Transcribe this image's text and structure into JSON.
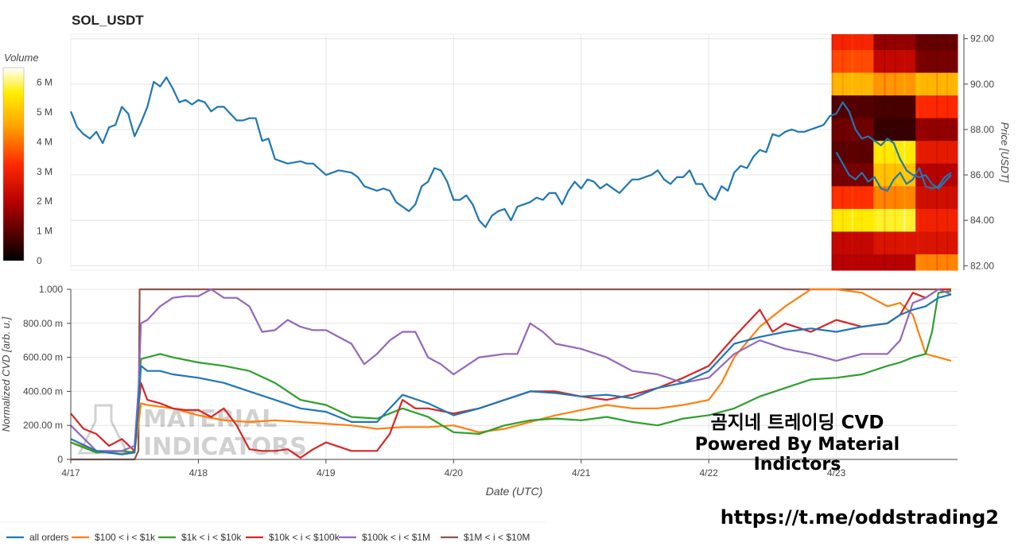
{
  "title": "SOL_USDT",
  "overlay": {
    "cvd_title": "곰지네 트레이딩 CVD",
    "powered_by": "Powered By Material Indictors",
    "telegram": "https://t.me/oddstrading2",
    "logo_text_1": "MATERIAL",
    "logo_text_2": "INDICATORS"
  },
  "chart_data": [
    {
      "type": "line",
      "name": "price",
      "x_label": "",
      "ylabel": "Price [USDT]",
      "ylim": [
        81.8,
        92.2
      ],
      "yticks": [
        82,
        84,
        86,
        88,
        90,
        92
      ],
      "ytick_labels": [
        "82.00",
        "84.00",
        "86.00",
        "88.00",
        "90.00",
        "92.00"
      ],
      "x_range_days": [
        0,
        6.95
      ],
      "series": [
        {
          "name": "SOL_USDT price",
          "color": "#1f77b4",
          "x": [
            0,
            0.05,
            0.1,
            0.15,
            0.2,
            0.25,
            0.3,
            0.35,
            0.4,
            0.45,
            0.5,
            0.55,
            0.6,
            0.65,
            0.7,
            0.75,
            0.8,
            0.85,
            0.9,
            0.95,
            1.0,
            1.05,
            1.1,
            1.15,
            1.2,
            1.3,
            1.35,
            1.4,
            1.45,
            1.5,
            1.55,
            1.6,
            1.7,
            1.8,
            1.85,
            1.9,
            2.0,
            2.05,
            2.1,
            2.2,
            2.25,
            2.3,
            2.35,
            2.4,
            2.45,
            2.5,
            2.55,
            2.6,
            2.65,
            2.7,
            2.75,
            2.8,
            2.85,
            2.9,
            2.95,
            3.0,
            3.05,
            3.1,
            3.15,
            3.2,
            3.25,
            3.3,
            3.35,
            3.4,
            3.45,
            3.5,
            3.55,
            3.6,
            3.65,
            3.7,
            3.75,
            3.8,
            3.85,
            3.9,
            3.95,
            4.0,
            4.05,
            4.1,
            4.15,
            4.2,
            4.25,
            4.3,
            4.35,
            4.4,
            4.45,
            4.5,
            4.55,
            4.6,
            4.65,
            4.7,
            4.75,
            4.8,
            4.85,
            4.9,
            4.95,
            5.0,
            5.05,
            5.1,
            5.15,
            5.2,
            5.25,
            5.3,
            5.35,
            5.4,
            5.45,
            5.5,
            5.55,
            5.6,
            5.65,
            5.7,
            5.75,
            5.8,
            5.85,
            5.9,
            5.95,
            6.0,
            6.05,
            6.1,
            6.15,
            6.2,
            6.25,
            6.3,
            6.35,
            6.4,
            6.45,
            6.5,
            6.55,
            6.6,
            6.65,
            6.7,
            6.75,
            6.8,
            6.85,
            6.9
          ],
          "values": [
            88.8,
            88.1,
            87.8,
            87.6,
            87.9,
            87.4,
            88.1,
            88.2,
            89.0,
            88.7,
            87.7,
            88.3,
            89.0,
            90.1,
            89.9,
            90.3,
            89.8,
            89.2,
            89.3,
            89.1,
            89.3,
            89.2,
            88.8,
            89.0,
            89.0,
            88.4,
            88.4,
            88.5,
            88.5,
            87.5,
            87.6,
            86.7,
            86.5,
            86.6,
            86.5,
            86.5,
            86.0,
            86.1,
            86.2,
            86.1,
            85.9,
            85.5,
            85.4,
            85.3,
            85.4,
            85.3,
            84.8,
            84.6,
            84.4,
            84.7,
            85.5,
            85.7,
            86.3,
            86.2,
            85.7,
            84.9,
            84.9,
            85.1,
            84.7,
            84.0,
            83.7,
            84.2,
            84.4,
            84.5,
            84.0,
            84.6,
            84.7,
            84.8,
            85.0,
            84.9,
            85.2,
            85.2,
            84.7,
            85.3,
            85.7,
            85.4,
            85.8,
            85.7,
            85.4,
            85.6,
            85.4,
            85.2,
            85.5,
            85.8,
            85.8,
            85.9,
            86.0,
            86.2,
            85.8,
            85.6,
            85.9,
            85.9,
            86.2,
            85.6,
            85.6,
            85.1,
            84.9,
            85.5,
            85.3,
            86.1,
            86.4,
            86.3,
            86.8,
            87.1,
            87.0,
            87.8,
            87.7,
            87.9,
            88.0,
            87.9,
            87.9,
            88.0,
            88.1,
            88.2,
            88.6,
            88.7,
            89.2,
            88.8,
            88.0,
            87.6,
            87.7,
            87.5,
            87.3,
            87.6,
            87.4,
            86.7,
            86.2,
            86.0,
            85.9,
            86.0,
            85.6,
            85.4,
            85.7,
            86.0
          ],
          "x_heatmap_price": [
            6.0,
            6.05,
            6.1,
            6.15,
            6.2,
            6.25,
            6.3,
            6.35,
            6.4,
            6.45,
            6.5,
            6.55,
            6.6,
            6.65,
            6.7,
            6.75,
            6.8,
            6.85,
            6.9
          ],
          "heatmap_price": [
            87.0,
            86.5,
            86.0,
            85.8,
            86.1,
            85.7,
            85.9,
            85.4,
            85.3,
            85.8,
            86.1,
            85.6,
            85.8,
            86.3,
            85.5,
            85.4,
            85.5,
            85.9,
            86.1
          ]
        }
      ]
    },
    {
      "type": "heatmap",
      "name": "volume-profile",
      "x_range_days": [
        6.0,
        6.95
      ],
      "colorbar_title": "Volume",
      "colorbar_ticks": [
        "0",
        "1 M",
        "2 M",
        "3 M",
        "4 M",
        "5 M",
        "6 M"
      ],
      "colorbar_max": 6500000,
      "price_bands": [
        {
          "from": 91.5,
          "to": 92.2,
          "cells": [
            3.1,
            1.6,
            1.1
          ]
        },
        {
          "from": 90.5,
          "to": 91.5,
          "cells": [
            3.6,
            2.2,
            1.3
          ]
        },
        {
          "from": 89.5,
          "to": 90.5,
          "cells": [
            4.8,
            4.4,
            4.8
          ]
        },
        {
          "from": 88.5,
          "to": 89.5,
          "cells": [
            0.9,
            0.8,
            3.2
          ]
        },
        {
          "from": 87.5,
          "to": 88.5,
          "cells": [
            1.2,
            0.6,
            1.6
          ]
        },
        {
          "from": 86.5,
          "to": 87.5,
          "cells": [
            1.0,
            5.6,
            2.8
          ]
        },
        {
          "from": 85.5,
          "to": 86.5,
          "cells": [
            1.3,
            5.0,
            2.0
          ]
        },
        {
          "from": 84.5,
          "to": 85.5,
          "cells": [
            3.3,
            4.2,
            2.4
          ]
        },
        {
          "from": 83.5,
          "to": 84.5,
          "cells": [
            5.6,
            5.8,
            3.0
          ]
        },
        {
          "from": 82.5,
          "to": 83.5,
          "cells": [
            2.2,
            2.6,
            2.6
          ]
        },
        {
          "from": 81.8,
          "to": 82.5,
          "cells": [
            2.0,
            2.0,
            4.2
          ]
        }
      ]
    },
    {
      "type": "line",
      "name": "cvd",
      "xlabel": "Date (UTC)",
      "ylabel": "Normalized CVD [arb. u.]",
      "ylim": [
        0,
        1.0
      ],
      "yticks": [
        0,
        0.2,
        0.4,
        0.6,
        0.8,
        1.0
      ],
      "ytick_labels": [
        "0",
        "200.00 m",
        "400.00 m",
        "600.00 m",
        "800.00 m",
        "1.000"
      ],
      "x_range_days": [
        0,
        6.95
      ],
      "xticks": [
        0,
        1,
        2,
        3,
        4,
        5,
        6
      ],
      "xtick_labels": [
        "4/17",
        "4/18",
        "4/19",
        "4/20",
        "4/21",
        "4/22",
        "4/23"
      ],
      "series": [
        {
          "name": "all orders",
          "color": "#1f77b4",
          "x": [
            0,
            0.2,
            0.4,
            0.5,
            0.53,
            0.55,
            0.6,
            0.7,
            0.8,
            1.0,
            1.2,
            1.4,
            1.6,
            1.8,
            2.0,
            2.2,
            2.4,
            2.5,
            2.6,
            2.8,
            3.0,
            3.2,
            3.4,
            3.6,
            3.8,
            4.0,
            4.2,
            4.4,
            4.6,
            4.8,
            5.0,
            5.2,
            5.4,
            5.6,
            5.8,
            6.0,
            6.2,
            6.4,
            6.5,
            6.6,
            6.7,
            6.8,
            6.9
          ],
          "values": [
            0.12,
            0.05,
            0.03,
            0.04,
            0.3,
            0.55,
            0.52,
            0.52,
            0.5,
            0.48,
            0.45,
            0.4,
            0.35,
            0.3,
            0.28,
            0.22,
            0.22,
            0.3,
            0.38,
            0.33,
            0.26,
            0.3,
            0.35,
            0.4,
            0.39,
            0.37,
            0.38,
            0.36,
            0.42,
            0.45,
            0.52,
            0.68,
            0.72,
            0.75,
            0.77,
            0.75,
            0.78,
            0.8,
            0.85,
            0.88,
            0.9,
            0.95,
            0.97
          ]
        },
        {
          "name": "$100 < i < $1k",
          "color": "#ff7f0e",
          "x": [
            0,
            0.2,
            0.4,
            0.5,
            0.53,
            0.55,
            0.6,
            0.8,
            1.0,
            1.2,
            1.4,
            1.6,
            1.8,
            2.0,
            2.2,
            2.4,
            2.6,
            2.8,
            3.0,
            3.2,
            3.4,
            3.6,
            3.8,
            4.0,
            4.2,
            4.4,
            4.6,
            4.8,
            5.0,
            5.1,
            5.2,
            5.4,
            5.6,
            5.8,
            6.0,
            6.2,
            6.4,
            6.5,
            6.6,
            6.7,
            6.8,
            6.9
          ],
          "values": [
            0.1,
            0.05,
            0.03,
            0.05,
            0.2,
            0.33,
            0.32,
            0.3,
            0.26,
            0.23,
            0.22,
            0.23,
            0.22,
            0.21,
            0.2,
            0.18,
            0.19,
            0.19,
            0.2,
            0.16,
            0.18,
            0.22,
            0.26,
            0.29,
            0.32,
            0.3,
            0.3,
            0.32,
            0.35,
            0.45,
            0.6,
            0.78,
            0.9,
            1.0,
            1.0,
            0.98,
            0.9,
            0.92,
            0.85,
            0.62,
            0.6,
            0.58
          ]
        },
        {
          "name": "$1k < i < $10k",
          "color": "#2ca02c",
          "x": [
            0,
            0.2,
            0.4,
            0.5,
            0.53,
            0.55,
            0.6,
            0.7,
            0.8,
            1.0,
            1.2,
            1.4,
            1.6,
            1.8,
            2.0,
            2.2,
            2.4,
            2.6,
            2.8,
            3.0,
            3.2,
            3.4,
            3.6,
            3.8,
            4.0,
            4.2,
            4.4,
            4.6,
            4.8,
            5.0,
            5.2,
            5.4,
            5.6,
            5.8,
            6.0,
            6.2,
            6.4,
            6.5,
            6.6,
            6.7,
            6.75,
            6.8,
            6.9
          ],
          "values": [
            0.1,
            0.04,
            0.05,
            0.04,
            0.4,
            0.59,
            0.6,
            0.62,
            0.6,
            0.57,
            0.55,
            0.52,
            0.45,
            0.35,
            0.32,
            0.25,
            0.24,
            0.3,
            0.25,
            0.16,
            0.15,
            0.2,
            0.23,
            0.24,
            0.23,
            0.25,
            0.22,
            0.2,
            0.24,
            0.26,
            0.3,
            0.37,
            0.42,
            0.47,
            0.48,
            0.5,
            0.55,
            0.57,
            0.6,
            0.62,
            0.75,
            0.98,
            0.99
          ]
        },
        {
          "name": "$10k < i < $100k",
          "color": "#d62728",
          "x": [
            0,
            0.1,
            0.2,
            0.3,
            0.4,
            0.5,
            0.53,
            0.55,
            0.6,
            0.7,
            0.8,
            0.9,
            1.0,
            1.1,
            1.2,
            1.3,
            1.4,
            1.5,
            1.6,
            1.7,
            1.8,
            1.9,
            2.0,
            2.2,
            2.4,
            2.5,
            2.6,
            2.7,
            2.8,
            3.0,
            3.2,
            3.4,
            3.6,
            3.8,
            4.0,
            4.2,
            4.4,
            4.6,
            4.8,
            5.0,
            5.2,
            5.4,
            5.5,
            5.6,
            5.8,
            6.0,
            6.2,
            6.4,
            6.5,
            6.6,
            6.7,
            6.8,
            6.9
          ],
          "values": [
            0.27,
            0.18,
            0.15,
            0.08,
            0.12,
            0.05,
            0.3,
            0.45,
            0.35,
            0.33,
            0.3,
            0.29,
            0.29,
            0.25,
            0.3,
            0.2,
            0.06,
            0.05,
            0.05,
            0.06,
            0.01,
            0.06,
            0.1,
            0.05,
            0.05,
            0.15,
            0.35,
            0.3,
            0.3,
            0.27,
            0.3,
            0.35,
            0.4,
            0.4,
            0.37,
            0.35,
            0.38,
            0.42,
            0.48,
            0.55,
            0.72,
            0.88,
            0.75,
            0.8,
            0.75,
            0.82,
            0.78,
            0.8,
            0.85,
            0.98,
            0.95,
            1.0,
            1.0
          ]
        },
        {
          "name": "$100k < i < $1M",
          "color": "#9467bd",
          "x": [
            0,
            0.2,
            0.4,
            0.5,
            0.53,
            0.55,
            0.6,
            0.7,
            0.8,
            0.9,
            1.0,
            1.1,
            1.2,
            1.3,
            1.4,
            1.5,
            1.6,
            1.7,
            1.8,
            1.9,
            2.0,
            2.1,
            2.2,
            2.3,
            2.4,
            2.5,
            2.6,
            2.7,
            2.8,
            2.9,
            3.0,
            3.2,
            3.4,
            3.5,
            3.6,
            3.7,
            3.8,
            4.0,
            4.2,
            4.4,
            4.6,
            4.8,
            5.0,
            5.2,
            5.4,
            5.6,
            5.8,
            6.0,
            6.2,
            6.4,
            6.5,
            6.6,
            6.7,
            6.8,
            6.9
          ],
          "values": [
            0.2,
            0.05,
            0.05,
            0.08,
            0.4,
            0.8,
            0.82,
            0.9,
            0.95,
            0.96,
            0.96,
            1.0,
            0.95,
            0.95,
            0.9,
            0.75,
            0.76,
            0.82,
            0.78,
            0.76,
            0.76,
            0.72,
            0.68,
            0.56,
            0.62,
            0.7,
            0.75,
            0.75,
            0.6,
            0.56,
            0.5,
            0.6,
            0.62,
            0.62,
            0.8,
            0.75,
            0.68,
            0.65,
            0.6,
            0.52,
            0.5,
            0.45,
            0.48,
            0.62,
            0.7,
            0.65,
            0.62,
            0.58,
            0.62,
            0.62,
            0.7,
            0.92,
            0.95,
            1.0,
            0.97
          ]
        },
        {
          "name": "$1M < i < $10M",
          "color": "#8c564b",
          "x": [
            0,
            0.5,
            0.53,
            0.54,
            6.9
          ],
          "values": [
            0,
            0,
            0.05,
            1.0,
            1.0
          ]
        }
      ],
      "legend": {
        "placement": "bottom-left"
      }
    }
  ],
  "axes_style": {
    "grid_color": "#e4e4e4",
    "axis_color": "#444444",
    "tick_font_color": "#444444"
  }
}
